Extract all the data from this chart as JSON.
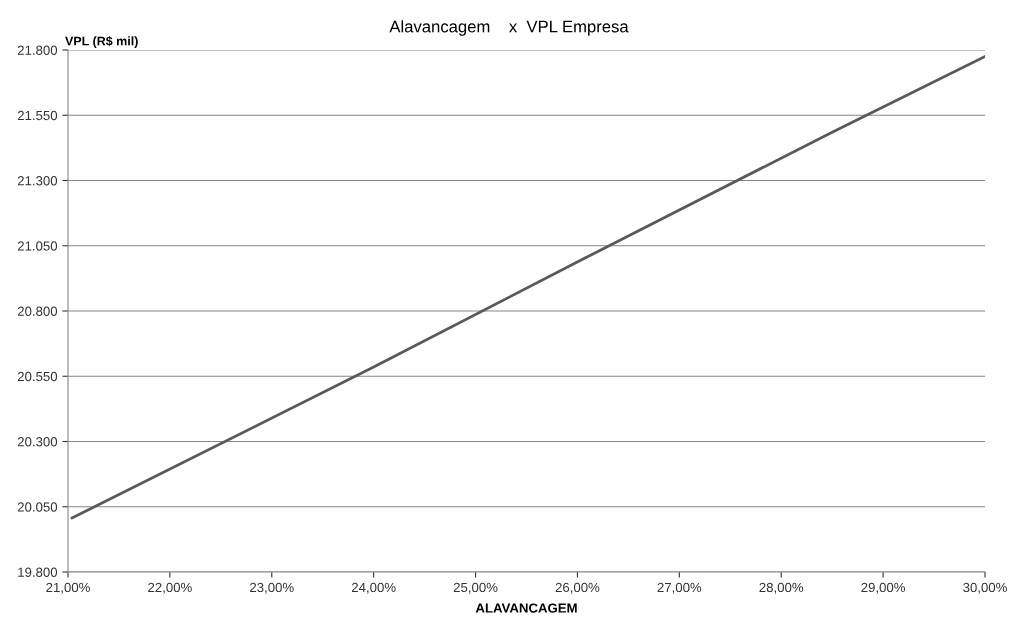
{
  "chart_data": {
    "type": "line",
    "title": "Alavancagem    x  VPL Empresa",
    "xlabel": "ALAVANCAGEM",
    "ylabel": "VPL (R$ mil)",
    "x": [
      21.04,
      24.0,
      26.06,
      28.5,
      30.0
    ],
    "series": [
      {
        "color": "#595959",
        "values": [
          20007,
          20585,
          21000,
          21485,
          21775
        ]
      }
    ],
    "xlim": [
      21.0,
      30.0
    ],
    "xticks": [
      {
        "value": 21,
        "label": "21,00%"
      },
      {
        "value": 22,
        "label": "22,00%"
      },
      {
        "value": 23,
        "label": "23,00%"
      },
      {
        "value": 24,
        "label": "24,00%"
      },
      {
        "value": 25,
        "label": "25,00%"
      },
      {
        "value": 26,
        "label": "26,00%"
      },
      {
        "value": 27,
        "label": "27,00%"
      },
      {
        "value": 28,
        "label": "28,00%"
      },
      {
        "value": 29,
        "label": "29,00%"
      },
      {
        "value": 30,
        "label": "30,00%"
      }
    ],
    "ylim": [
      19800,
      21800
    ],
    "yticks": [
      {
        "value": 19800,
        "label": "19.800"
      },
      {
        "value": 20050,
        "label": "20.050"
      },
      {
        "value": 20300,
        "label": "20.300"
      },
      {
        "value": 20550,
        "label": "20.550"
      },
      {
        "value": 20800,
        "label": "20.800"
      },
      {
        "value": 21050,
        "label": "21.050"
      },
      {
        "value": 21300,
        "label": "21.300"
      },
      {
        "value": 21550,
        "label": "21.550"
      },
      {
        "value": 21800,
        "label": "21.800"
      }
    ],
    "grid": "y",
    "legend": false,
    "marker": "none",
    "line_style": "solid"
  }
}
